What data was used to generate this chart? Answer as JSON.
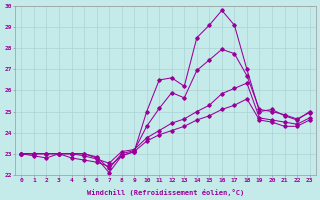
{
  "xlabel": "Windchill (Refroidissement éolien,°C)",
  "xlim": [
    -0.5,
    23.5
  ],
  "ylim": [
    22,
    30
  ],
  "xtick_labels": [
    "0",
    "1",
    "2",
    "3",
    "4",
    "5",
    "6",
    "7",
    "8",
    "9",
    "10",
    "11",
    "12",
    "13",
    "14",
    "15",
    "16",
    "17",
    "18",
    "19",
    "20",
    "21",
    "22",
    "23"
  ],
  "ytick_labels": [
    "22",
    "23",
    "24",
    "25",
    "26",
    "27",
    "28",
    "29",
    "30"
  ],
  "background_color": "#c5eaea",
  "grid_color": "#aad4d4",
  "line_color": "#990099",
  "lines": [
    [
      23.0,
      23.0,
      23.0,
      23.0,
      23.0,
      23.0,
      22.8,
      22.1,
      22.9,
      23.1,
      25.0,
      26.5,
      26.6,
      26.2,
      28.5,
      29.1,
      29.8,
      29.1,
      27.0,
      25.0,
      25.1,
      24.8,
      24.6,
      25.0
    ],
    [
      23.0,
      22.9,
      22.8,
      23.0,
      22.8,
      22.7,
      22.6,
      22.4,
      22.9,
      23.1,
      23.6,
      23.9,
      24.1,
      24.3,
      24.6,
      24.8,
      25.1,
      25.3,
      25.6,
      24.6,
      24.5,
      24.3,
      24.3,
      24.6
    ],
    [
      23.0,
      23.0,
      23.0,
      23.0,
      23.0,
      22.9,
      22.75,
      22.55,
      23.1,
      23.2,
      23.75,
      24.1,
      24.45,
      24.65,
      25.0,
      25.3,
      25.85,
      26.1,
      26.35,
      24.7,
      24.6,
      24.5,
      24.4,
      24.7
    ],
    [
      23.0,
      23.0,
      23.0,
      23.0,
      23.0,
      23.0,
      22.85,
      22.3,
      23.0,
      23.15,
      24.3,
      25.15,
      25.9,
      25.65,
      26.95,
      27.45,
      27.95,
      27.75,
      26.7,
      25.1,
      25.0,
      24.85,
      24.65,
      24.95
    ]
  ],
  "marker": "D",
  "markersize": 1.8,
  "linewidth": 0.75
}
